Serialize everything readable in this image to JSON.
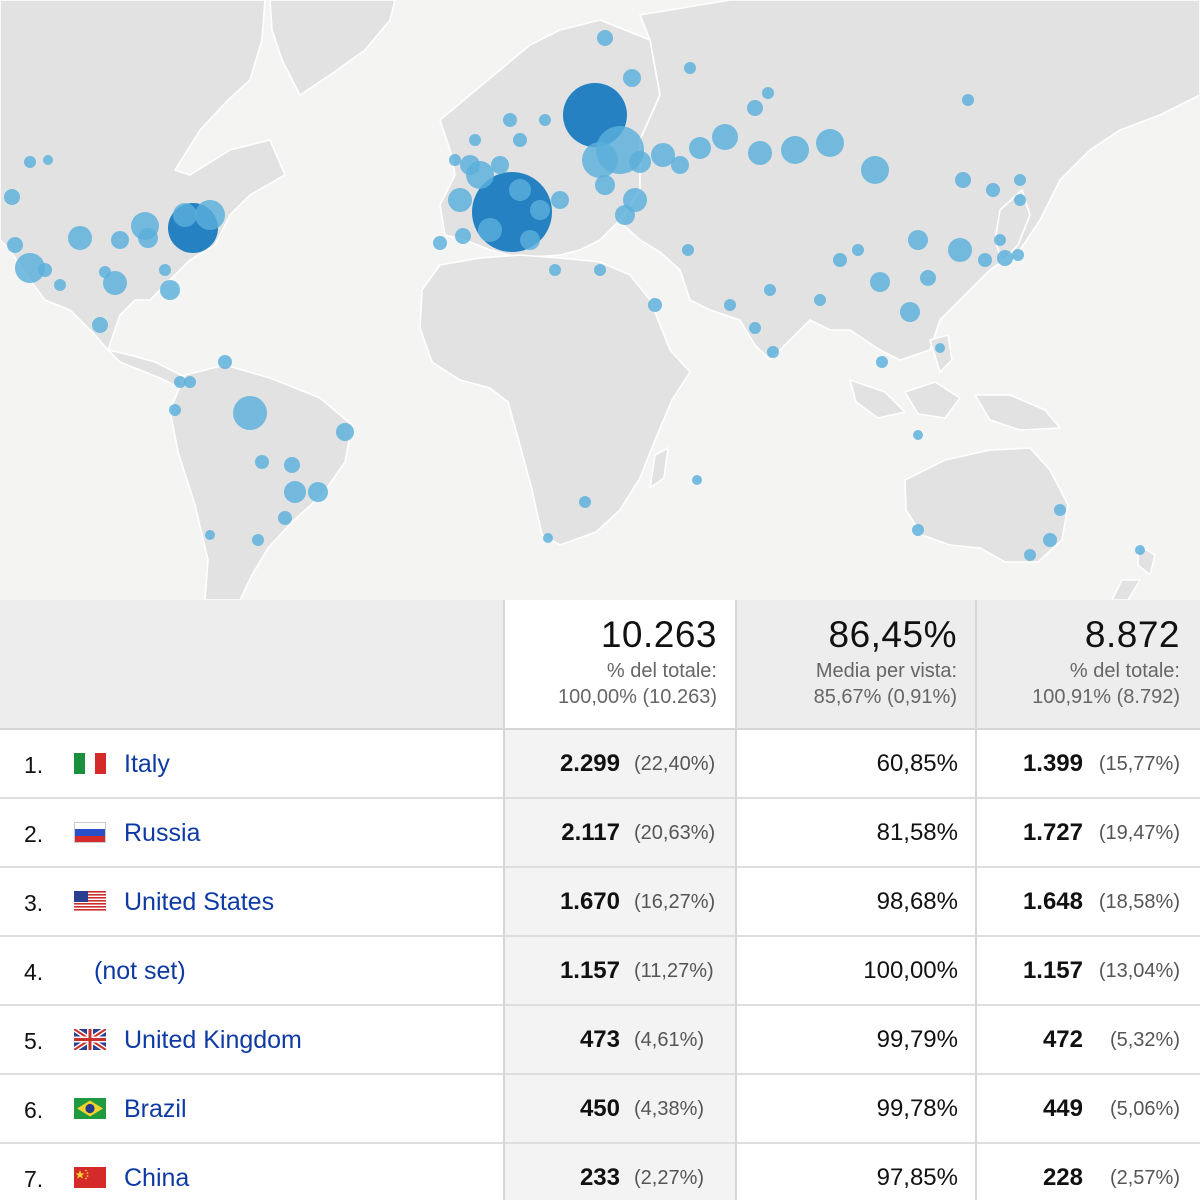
{
  "map": {
    "land_color": "#e2e2e2",
    "bubble_color": "#5ab0dc",
    "bubble_dark_color": "#1a7bbf"
  },
  "summary": {
    "sessions": {
      "value": "10.263",
      "label": "% del totale:",
      "detail": "100,00% (10.263)"
    },
    "rate": {
      "value": "86,45%",
      "label": "Media per vista:",
      "detail": "85,67% (0,91%)"
    },
    "new_users": {
      "value": "8.872",
      "label": "% del totale:",
      "detail": "100,91% (8.792)"
    }
  },
  "rows": [
    {
      "num": "1.",
      "flag": "italy-flag-icon",
      "country": "Italy",
      "sessions": "2.299",
      "sessions_pct": "(22,40%)",
      "rate": "60,85%",
      "new_users": "1.399",
      "new_users_pct": "(15,77%)"
    },
    {
      "num": "2.",
      "flag": "russia-flag-icon",
      "country": "Russia",
      "sessions": "2.117",
      "sessions_pct": "(20,63%)",
      "rate": "81,58%",
      "new_users": "1.727",
      "new_users_pct": "(19,47%)"
    },
    {
      "num": "3.",
      "flag": "usa-flag-icon",
      "country": "United States",
      "sessions": "1.670",
      "sessions_pct": "(16,27%)",
      "rate": "98,68%",
      "new_users": "1.648",
      "new_users_pct": "(18,58%)"
    },
    {
      "num": "4.",
      "flag": "",
      "country": "(not set)",
      "sessions": "1.157",
      "sessions_pct": "(11,27%)",
      "rate": "100,00%",
      "new_users": "1.157",
      "new_users_pct": "(13,04%)"
    },
    {
      "num": "5.",
      "flag": "uk-flag-icon",
      "country": "United Kingdom",
      "sessions": "473",
      "sessions_pct": "(4,61%)",
      "rate": "99,79%",
      "new_users": "472",
      "new_users_pct": "(5,32%)"
    },
    {
      "num": "6.",
      "flag": "brazil-flag-icon",
      "country": "Brazil",
      "sessions": "450",
      "sessions_pct": "(4,38%)",
      "rate": "99,78%",
      "new_users": "449",
      "new_users_pct": "(5,06%)"
    },
    {
      "num": "7.",
      "flag": "china-flag-icon",
      "country": "China",
      "sessions": "233",
      "sessions_pct": "(2,27%)",
      "rate": "97,85%",
      "new_users": "228",
      "new_users_pct": "(2,57%)"
    }
  ]
}
